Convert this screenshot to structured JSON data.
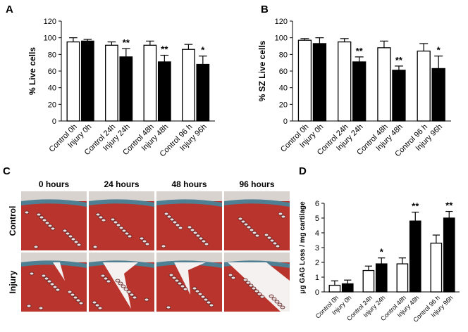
{
  "chart_data": [
    {
      "type": "bar",
      "panel": "A",
      "ylabel": "% Live cells",
      "categories": [
        "Control 0h",
        "Injury 0h",
        "Control 24h",
        "Injury 24h",
        "Control 48h",
        "Injury 48h",
        "Control 96 h",
        "Injury 96h"
      ],
      "values": [
        95,
        96,
        91,
        77,
        91,
        71,
        86,
        68
      ],
      "errors": [
        5,
        2,
        4,
        10,
        5,
        8,
        6,
        10
      ],
      "significance": [
        null,
        null,
        null,
        "**",
        null,
        "**",
        null,
        "*"
      ],
      "colors": [
        "#ffffff",
        "#000000",
        "#ffffff",
        "#000000",
        "#ffffff",
        "#000000",
        "#ffffff",
        "#000000"
      ],
      "ylim": [
        0,
        120
      ],
      "yticks": [
        0,
        20,
        40,
        60,
        80,
        100,
        120
      ]
    },
    {
      "type": "bar",
      "panel": "B",
      "ylabel": "% SZ Live cells",
      "categories": [
        "Control 0h",
        "Injury 0h",
        "Control 24h",
        "Injury 24h",
        "Control 48h",
        "Injury 48h",
        "Control 96 h",
        "Injury 96h"
      ],
      "values": [
        97,
        93,
        95,
        71,
        88,
        61,
        84,
        63
      ],
      "errors": [
        2,
        7,
        4,
        6,
        8,
        5,
        9,
        15
      ],
      "significance": [
        null,
        null,
        null,
        "**",
        null,
        "**",
        null,
        "*"
      ],
      "colors": [
        "#ffffff",
        "#000000",
        "#ffffff",
        "#000000",
        "#ffffff",
        "#000000",
        "#ffffff",
        "#000000"
      ],
      "ylim": [
        0,
        120
      ],
      "yticks": [
        0,
        20,
        40,
        60,
        80,
        100,
        120
      ]
    },
    {
      "type": "bar",
      "panel": "D",
      "ylabel": "μg GAG Loss / mg cartilage",
      "categories": [
        "Control 0h",
        "Injury 0h",
        "Control 24h",
        "Injury 24h",
        "Control 48h",
        "Injury 48h",
        "Control 96 h",
        "Injury 96h"
      ],
      "values": [
        0.45,
        0.55,
        1.45,
        1.9,
        1.9,
        4.8,
        3.3,
        5.0
      ],
      "errors": [
        0.3,
        0.25,
        0.3,
        0.4,
        0.4,
        0.6,
        0.55,
        0.45
      ],
      "significance": [
        null,
        null,
        null,
        "*",
        null,
        "**",
        null,
        "**"
      ],
      "colors": [
        "#ffffff",
        "#000000",
        "#ffffff",
        "#000000",
        "#ffffff",
        "#000000",
        "#ffffff",
        "#000000"
      ],
      "ylim": [
        0,
        6
      ],
      "yticks": [
        0,
        1,
        2,
        3,
        4,
        5,
        6
      ]
    }
  ],
  "panel_c": {
    "panel": "C",
    "columns": [
      "0 hours",
      "24 hours",
      "48 hours",
      "96 hours"
    ],
    "rows": [
      "Control",
      "Injury"
    ]
  }
}
